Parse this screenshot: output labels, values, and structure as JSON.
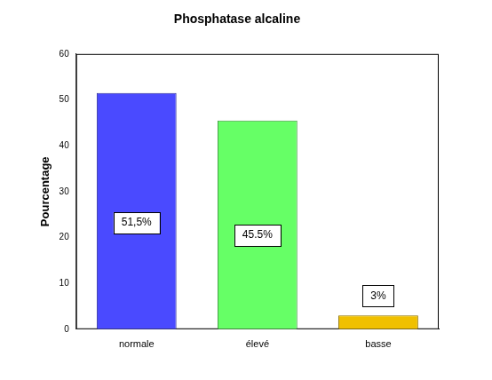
{
  "chart_data": {
    "type": "bar",
    "title": "Phosphatase alcaline",
    "y_label": "Pourcentage",
    "categories": [
      "normale",
      "élevé",
      "basse"
    ],
    "values": [
      51.5,
      45.5,
      3
    ],
    "value_labels": [
      "51,5%",
      "45.5%",
      "3%"
    ],
    "data_labels": true,
    "colors": [
      "#4a4aff",
      "#66ff66",
      "#f0c000"
    ],
    "ylim": [
      0,
      60
    ],
    "yticks": [
      0,
      10,
      20,
      30,
      40,
      50,
      60
    ],
    "grid": false
  }
}
